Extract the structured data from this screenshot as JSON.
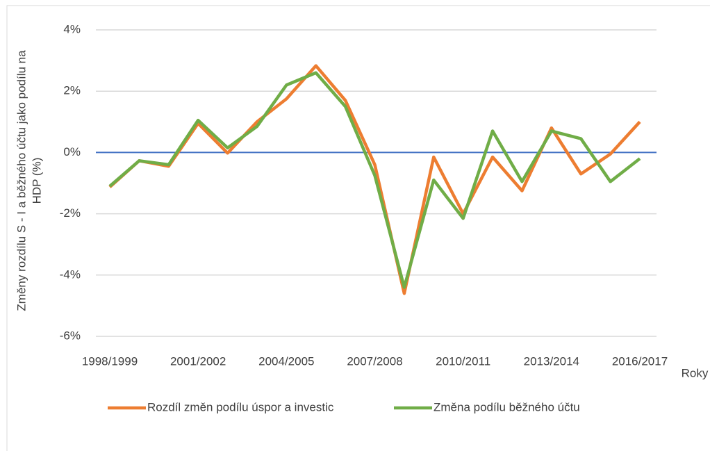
{
  "chart_data": {
    "type": "line",
    "ylabel": [
      "Změny rozdílu S - I a běžného účtu jako podílu na",
      "HDP (%)"
    ],
    "xlabel": "Roky",
    "categories": [
      "1998/1999",
      null,
      null,
      "2001/2002",
      null,
      null,
      "2004/2005",
      null,
      null,
      "2007/2008",
      null,
      null,
      "2010/2011",
      null,
      null,
      "2013/2014",
      null,
      null,
      "2016/2017"
    ],
    "series": [
      {
        "name": "Rozdíl změn podílu úspor a investic",
        "color": "#ed7d31",
        "values": [
          -1.13,
          -0.27,
          -0.45,
          0.95,
          -0.02,
          1.0,
          1.75,
          2.83,
          1.7,
          -0.4,
          -4.6,
          -0.15,
          -2.0,
          -0.15,
          -1.25,
          0.8,
          -0.7,
          -0.05,
          1.0
        ]
      },
      {
        "name": "Změna podílu běžného účtu",
        "color": "#70ad47",
        "values": [
          -1.1,
          -0.27,
          -0.4,
          1.05,
          0.15,
          0.85,
          2.2,
          2.6,
          1.5,
          -0.75,
          -4.4,
          -0.9,
          -2.15,
          0.7,
          -0.95,
          0.7,
          0.45,
          -0.95,
          -0.2
        ]
      }
    ],
    "ylim": [
      -6,
      4
    ],
    "yticks": [
      {
        "value": -6,
        "label": "-6%"
      },
      {
        "value": -4,
        "label": "-4%"
      },
      {
        "value": -2,
        "label": "-2%"
      },
      {
        "value": 0,
        "label": "0%"
      },
      {
        "value": 2,
        "label": "2%"
      },
      {
        "value": 4,
        "label": "4%"
      }
    ],
    "grid": true,
    "grid_color": "#d9d9d9",
    "zero_line_color": "#4472c4",
    "legend": "bottom"
  }
}
